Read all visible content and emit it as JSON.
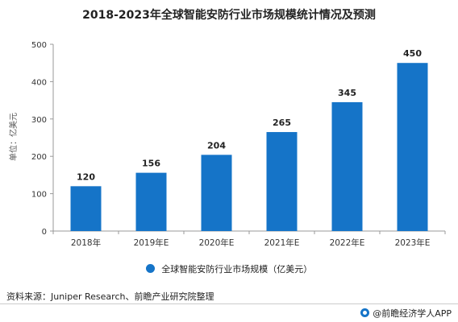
{
  "chart_data": {
    "type": "bar",
    "title": "2018-2023年全球智能安防行业市场规模统计情况及预测",
    "ylabel": "单位：亿美元",
    "xlabel": "",
    "categories": [
      "2018年",
      "2019年E",
      "2020年E",
      "2021年E",
      "2022年E",
      "2023年E"
    ],
    "series": [
      {
        "name": "全球智能安防行业市场规模（亿美元）",
        "values": [
          120,
          156,
          204,
          265,
          345,
          450
        ]
      }
    ],
    "ylim": [
      0,
      500
    ],
    "yticks": [
      0,
      100,
      200,
      300,
      400,
      500
    ],
    "grid": false,
    "legend": "bottom",
    "bar_color": "#1574c8"
  },
  "source": "资料来源：Juniper Research、前瞻产业研究院整理",
  "brand": "@前瞻经济学人APP"
}
